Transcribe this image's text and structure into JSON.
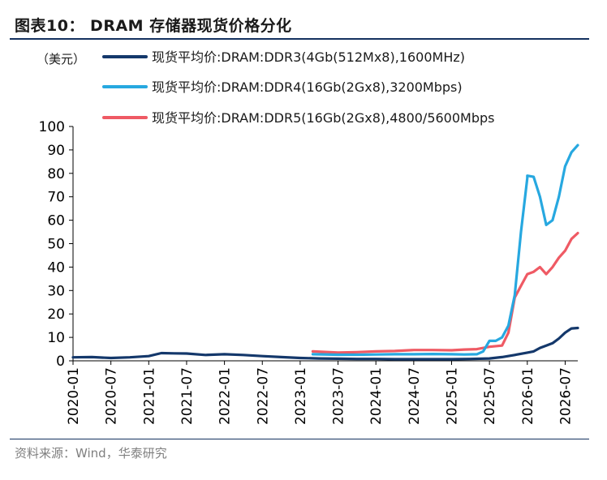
{
  "figure": {
    "title": "图表10： DRAM 存储器现货价格分化",
    "source": "资料来源：Wind，华泰研究"
  },
  "chart_data": {
    "type": "line",
    "unit_label": "（美元）",
    "ylim": [
      0,
      100
    ],
    "yticks": [
      "0",
      "10",
      "20",
      "30",
      "40",
      "50",
      "60",
      "70",
      "80",
      "90",
      "100"
    ],
    "xlim": [
      "2020-01",
      "2026-09"
    ],
    "xticks": [
      "2020-01",
      "2020-07",
      "2021-01",
      "2021-07",
      "2022-01",
      "2022-07",
      "2023-01",
      "2023-07",
      "2024-01",
      "2024-07",
      "2025-01",
      "2025-07",
      "2026-01",
      "2026-07"
    ],
    "grid": false,
    "legend_position": "top-left",
    "colors": {
      "ddr3": "#14386b",
      "ddr4": "#27a8e0",
      "ddr5": "#ef5a64"
    },
    "series": [
      {
        "key": "ddr3",
        "name": "现货平均价:DRAM:DDR3(4Gb(512Mx8),1600MHz)",
        "x": [
          "2020-01",
          "2020-04",
          "2020-07",
          "2020-10",
          "2021-01",
          "2021-03",
          "2021-05",
          "2021-07",
          "2021-10",
          "2022-01",
          "2022-04",
          "2022-07",
          "2022-10",
          "2023-01",
          "2023-04",
          "2023-07",
          "2023-10",
          "2024-01",
          "2024-04",
          "2024-07",
          "2024-10",
          "2025-01",
          "2025-04",
          "2025-07",
          "2025-09",
          "2025-11",
          "2026-01",
          "2026-02",
          "2026-03",
          "2026-04",
          "2026-05",
          "2026-06",
          "2026-07",
          "2026-08",
          "2026-09"
        ],
        "values": [
          1.5,
          1.6,
          1.2,
          1.5,
          2.0,
          3.3,
          3.2,
          3.1,
          2.5,
          2.8,
          2.5,
          2.0,
          1.6,
          1.2,
          1.0,
          0.9,
          0.8,
          0.8,
          0.7,
          0.7,
          0.7,
          0.7,
          0.8,
          1.0,
          1.6,
          2.5,
          3.5,
          4.0,
          5.5,
          6.5,
          7.5,
          9.5,
          12.0,
          13.8,
          14.0
        ]
      },
      {
        "key": "ddr4",
        "name": "现货平均价:DRAM:DDR4(16Gb(2Gx8),3200Mbps)",
        "x": [
          "2023-03",
          "2023-07",
          "2023-10",
          "2024-01",
          "2024-04",
          "2024-07",
          "2024-10",
          "2025-01",
          "2025-03",
          "2025-05",
          "2025-06",
          "2025-07",
          "2025-08",
          "2025-09",
          "2025-10",
          "2025-11",
          "2025-12",
          "2026-01",
          "2026-01",
          "2026-02",
          "2026-03",
          "2026-04",
          "2026-05",
          "2026-06",
          "2026-07",
          "2026-08",
          "2026-09"
        ],
        "values": [
          2.8,
          2.6,
          2.6,
          2.7,
          2.8,
          2.8,
          2.9,
          2.8,
          2.7,
          2.8,
          4.0,
          8.5,
          8.5,
          10.0,
          15.0,
          28.0,
          55.0,
          78.0,
          79.0,
          78.5,
          70.0,
          58.0,
          60.0,
          70.0,
          83.0,
          89.0,
          92.0
        ]
      },
      {
        "key": "ddr5",
        "name": "现货平均价:DRAM:DDR5(16Gb(2Gx8),4800/5600Mbps",
        "x": [
          "2023-03",
          "2023-07",
          "2023-10",
          "2024-01",
          "2024-04",
          "2024-07",
          "2024-10",
          "2025-01",
          "2025-03",
          "2025-05",
          "2025-07",
          "2025-09",
          "2025-10",
          "2025-11",
          "2025-12",
          "2026-01",
          "2026-02",
          "2026-03",
          "2026-04",
          "2026-05",
          "2026-06",
          "2026-07",
          "2026-08",
          "2026-09"
        ],
        "values": [
          4.0,
          3.5,
          3.7,
          4.0,
          4.2,
          4.6,
          4.6,
          4.5,
          4.8,
          5.0,
          6.0,
          6.5,
          12.0,
          27.0,
          32.0,
          37.0,
          38.0,
          40.0,
          37.0,
          40.0,
          44.0,
          47.0,
          52.0,
          54.5
        ]
      }
    ]
  }
}
